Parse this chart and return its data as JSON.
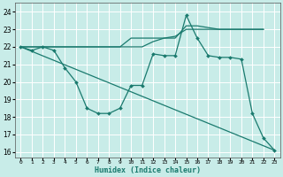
{
  "xlabel": "Humidex (Indice chaleur)",
  "bg_color": "#c8ece8",
  "line_color": "#1a7a6e",
  "grid_color": "#ffffff",
  "xlim": [
    -0.5,
    23.5
  ],
  "ylim": [
    15.7,
    24.5
  ],
  "yticks": [
    16,
    17,
    18,
    19,
    20,
    21,
    22,
    23,
    24
  ],
  "xticks": [
    0,
    1,
    2,
    3,
    4,
    5,
    6,
    7,
    8,
    9,
    10,
    11,
    12,
    13,
    14,
    15,
    16,
    17,
    18,
    19,
    20,
    21,
    22,
    23
  ],
  "line1_x": [
    0,
    1,
    2,
    3,
    4,
    5,
    6,
    7,
    8,
    9,
    10,
    11,
    12,
    13,
    14,
    15,
    16,
    17,
    18,
    19,
    20,
    21,
    22
  ],
  "line1_y": [
    22,
    22,
    22,
    22,
    22,
    22,
    22,
    22,
    22,
    22,
    22,
    22,
    22.3,
    22.5,
    22.6,
    23.0,
    23.0,
    23.0,
    23.0,
    23.0,
    23.0,
    23.0,
    23.0
  ],
  "line2_x": [
    0,
    1,
    2,
    3,
    4,
    5,
    6,
    7,
    8,
    9,
    10,
    11,
    12,
    13,
    14,
    15,
    16,
    17,
    18,
    19,
    20,
    21,
    22
  ],
  "line2_y": [
    22,
    22,
    22,
    22,
    22,
    22,
    22,
    22,
    22,
    22,
    22.5,
    22.5,
    22.5,
    22.5,
    22.5,
    23.2,
    23.2,
    23.1,
    23.0,
    23.0,
    23.0,
    23.0,
    23.0
  ],
  "line3_x": [
    0,
    1,
    2,
    3,
    4,
    5,
    6,
    7,
    8,
    9,
    10,
    11,
    12,
    13,
    14,
    15,
    16,
    17,
    18,
    19,
    20,
    21,
    22,
    23
  ],
  "line3_y": [
    22,
    21.8,
    22,
    21.8,
    20.8,
    20.0,
    18.5,
    18.2,
    18.2,
    18.5,
    19.8,
    19.8,
    21.6,
    21.5,
    21.5,
    23.8,
    22.5,
    21.5,
    21.4,
    21.4,
    21.3,
    18.2,
    16.8,
    16.1
  ],
  "line4_x": [
    0,
    23
  ],
  "line4_y": [
    22,
    16.1
  ],
  "lw": 0.9,
  "markersize": 2.0
}
